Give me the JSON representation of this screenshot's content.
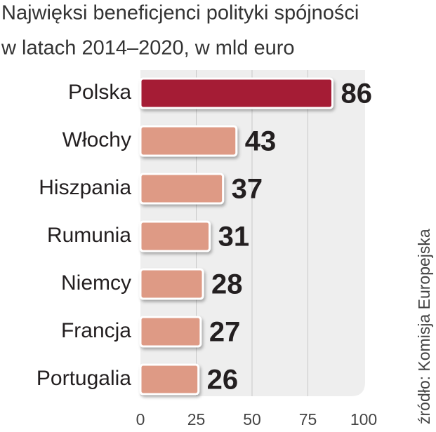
{
  "chart_data": {
    "type": "hbar",
    "title": "Najwięksi beneficjenci polityki spójności",
    "subtitle": "w latach 2014–2020, w mld euro",
    "source": "źródło: Komisja Europejska",
    "categories": [
      "Polska",
      "Włochy",
      "Hiszpania",
      "Rumunia",
      "Niemcy",
      "Francja",
      "Portugalia"
    ],
    "values": [
      86,
      43,
      37,
      31,
      28,
      27,
      26
    ],
    "colors": [
      "#a51c36",
      "#de9a85",
      "#de9a85",
      "#de9a85",
      "#de9a85",
      "#de9a85",
      "#de9a85"
    ],
    "xlim": [
      0,
      100
    ],
    "xticks": [
      0,
      25,
      50,
      75,
      100
    ],
    "grid": true
  }
}
